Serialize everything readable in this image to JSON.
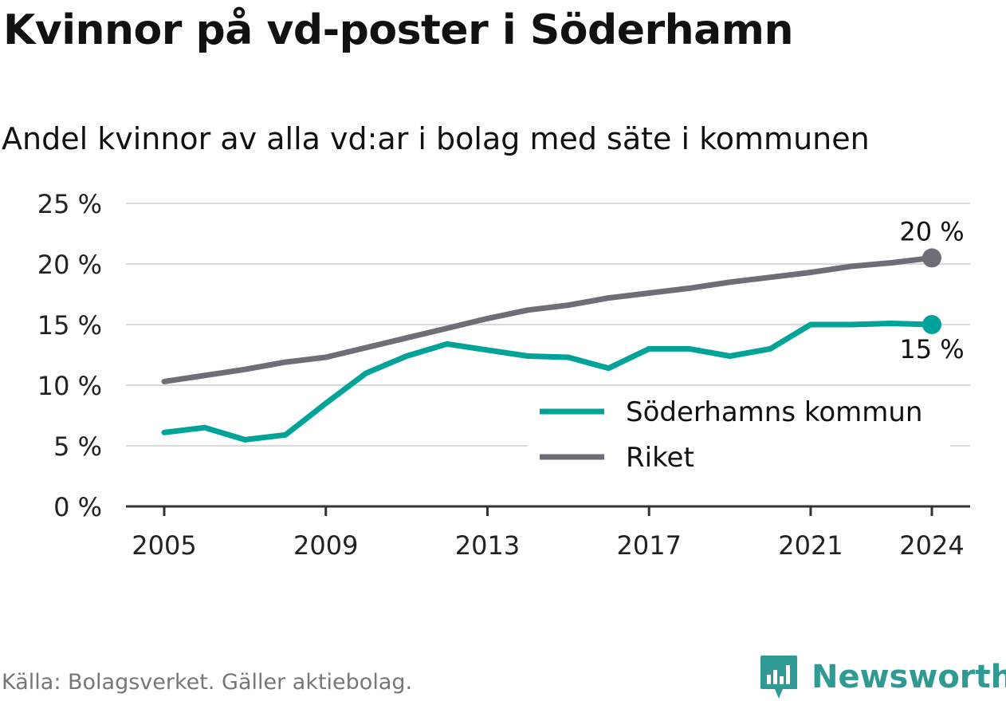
{
  "title": "Kvinnor på vd-poster i Söderhamn",
  "subtitle": "Andel kvinnor av alla vd:ar i bolag med säte i kommunen",
  "source": "Källa: Bolagsverket. Gäller aktiebolag.",
  "brand": {
    "name": "Newsworthy",
    "icon": "newsworthy-logo-icon",
    "color": "#2f9a94"
  },
  "chart_data": {
    "type": "line",
    "x": [
      2005,
      2006,
      2007,
      2008,
      2009,
      2010,
      2011,
      2012,
      2013,
      2014,
      2015,
      2016,
      2017,
      2018,
      2019,
      2020,
      2021,
      2022,
      2023,
      2024
    ],
    "series": [
      {
        "name": "Söderhamns kommun",
        "color": "#00a398",
        "values": [
          6.1,
          6.5,
          5.5,
          5.9,
          8.5,
          11.0,
          12.4,
          13.4,
          12.9,
          12.4,
          12.3,
          11.4,
          13.0,
          13.0,
          12.4,
          13.0,
          15.0,
          15.0,
          15.1,
          15.0
        ],
        "end_label": "15 %"
      },
      {
        "name": "Riket",
        "color": "#6e6e78",
        "values": [
          10.3,
          10.8,
          11.3,
          11.9,
          12.3,
          13.1,
          13.9,
          14.7,
          15.5,
          16.2,
          16.6,
          17.2,
          17.6,
          18.0,
          18.5,
          18.9,
          19.3,
          19.8,
          20.1,
          20.5
        ],
        "end_label": "20 %"
      }
    ],
    "y_ticks": [
      "0 %",
      "5 %",
      "10 %",
      "15 %",
      "20 %",
      "25 %"
    ],
    "x_ticks": [
      "2005",
      "2009",
      "2013",
      "2017",
      "2021",
      "2024"
    ],
    "ylim": [
      0,
      25
    ],
    "xlim": [
      2005,
      2024
    ],
    "ylabel": "",
    "xlabel": "",
    "grid": true,
    "legend_position": "bottom-right"
  }
}
